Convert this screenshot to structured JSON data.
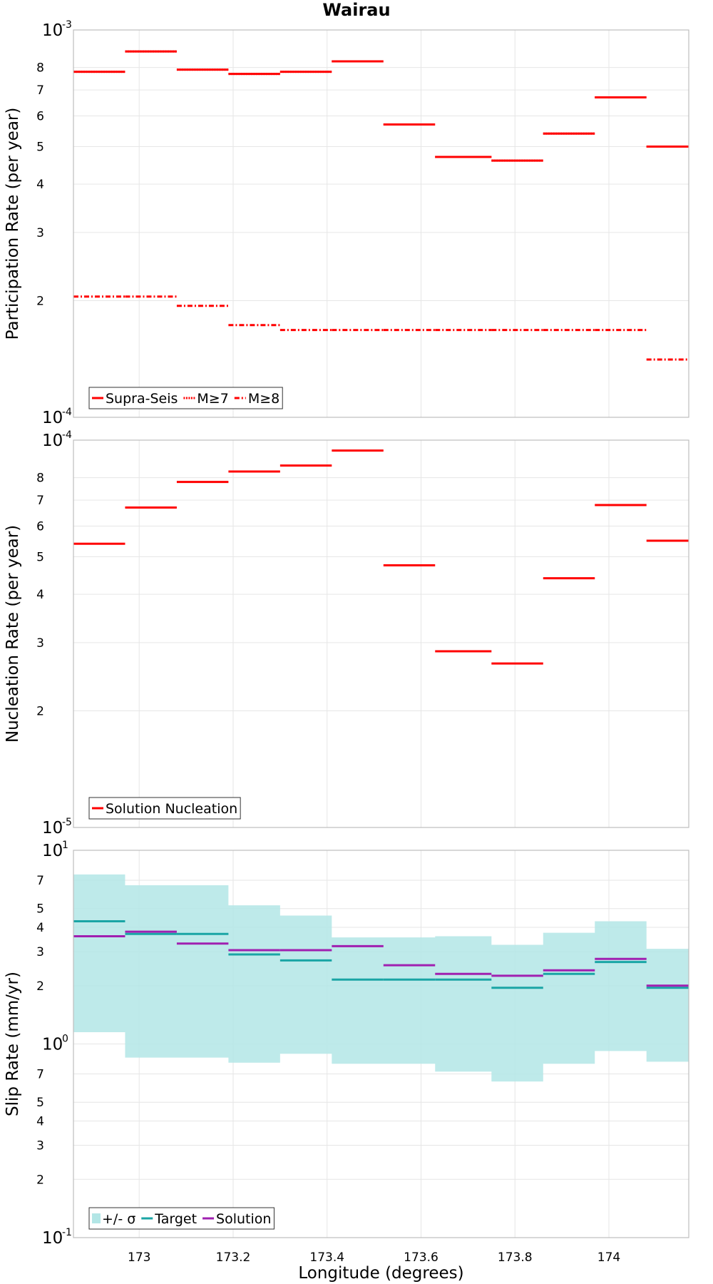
{
  "figure_title": "Wairau",
  "chart_data": [
    {
      "type": "line",
      "step": true,
      "ylabel": "Participation Rate (per year)",
      "yscale": "log",
      "ylim": [
        0.0001,
        0.001
      ],
      "xlim": [
        172.86,
        174.17
      ],
      "y_ticks": [
        {
          "value": 0.001,
          "mant": "10",
          "exp": "-3"
        },
        {
          "value": 0.0008,
          "label": "8"
        },
        {
          "value": 0.0007,
          "label": "7"
        },
        {
          "value": 0.0006,
          "label": "6"
        },
        {
          "value": 0.0005,
          "label": "5"
        },
        {
          "value": 0.0004,
          "label": "4"
        },
        {
          "value": 0.0003,
          "label": "3"
        },
        {
          "value": 0.0002,
          "label": "2"
        },
        {
          "value": 0.0001,
          "mant": "10",
          "exp": "-4"
        }
      ],
      "legend": {
        "position": "bottom-left"
      },
      "series": [
        {
          "name": "Supra-Seis",
          "color": "#ff0000",
          "dash": "solid",
          "bins": [
            [
              172.86,
              172.97
            ],
            [
              172.97,
              173.08
            ],
            [
              173.08,
              173.19
            ],
            [
              173.19,
              173.3
            ],
            [
              173.3,
              173.41
            ],
            [
              173.41,
              173.52
            ],
            [
              173.52,
              173.63
            ],
            [
              173.63,
              173.75
            ],
            [
              173.75,
              173.86
            ],
            [
              173.86,
              173.97
            ],
            [
              173.97,
              174.08
            ],
            [
              174.08,
              174.17
            ]
          ],
          "values": [
            0.00078,
            0.00088,
            0.00079,
            0.00077,
            0.00078,
            0.00083,
            0.00057,
            0.00047,
            0.00046,
            0.00054,
            0.00067,
            0.0005
          ]
        },
        {
          "name": "M≥7",
          "color": "#ff0000",
          "dash": "dotted",
          "bins": [
            [
              172.86,
              172.97
            ],
            [
              172.97,
              173.08
            ],
            [
              173.08,
              173.19
            ],
            [
              173.19,
              173.3
            ],
            [
              173.3,
              173.41
            ],
            [
              173.41,
              173.52
            ],
            [
              173.52,
              173.63
            ],
            [
              173.63,
              173.75
            ],
            [
              173.75,
              173.86
            ],
            [
              173.86,
              173.97
            ],
            [
              173.97,
              174.08
            ],
            [
              174.08,
              174.17
            ]
          ],
          "values": [
            0.00078,
            0.00088,
            0.00079,
            0.00077,
            0.00078,
            0.00083,
            0.00057,
            0.00047,
            0.00046,
            0.00054,
            0.00067,
            0.0005
          ]
        },
        {
          "name": "M≥8",
          "color": "#ff0000",
          "dash": "dashdot",
          "bins": [
            [
              172.86,
              172.97
            ],
            [
              172.97,
              173.08
            ],
            [
              173.08,
              173.19
            ],
            [
              173.19,
              173.3
            ],
            [
              173.3,
              173.41
            ],
            [
              173.41,
              173.52
            ],
            [
              173.52,
              173.63
            ],
            [
              173.63,
              173.75
            ],
            [
              173.75,
              173.86
            ],
            [
              173.86,
              173.97
            ],
            [
              173.97,
              174.08
            ],
            [
              174.08,
              174.17
            ]
          ],
          "values": [
            0.000205,
            0.000205,
            0.000194,
            0.000173,
            0.000168,
            0.000168,
            0.000168,
            0.000168,
            0.000168,
            0.000168,
            0.000168,
            0.000141
          ]
        }
      ]
    },
    {
      "type": "line",
      "step": true,
      "ylabel": "Nucleation Rate (per year)",
      "yscale": "log",
      "ylim": [
        1e-05,
        0.0001
      ],
      "xlim": [
        172.86,
        174.17
      ],
      "y_ticks": [
        {
          "value": 0.0001,
          "mant": "10",
          "exp": "-4"
        },
        {
          "value": 8e-05,
          "label": "8"
        },
        {
          "value": 7e-05,
          "label": "7"
        },
        {
          "value": 6e-05,
          "label": "6"
        },
        {
          "value": 5e-05,
          "label": "5"
        },
        {
          "value": 4e-05,
          "label": "4"
        },
        {
          "value": 3e-05,
          "label": "3"
        },
        {
          "value": 2e-05,
          "label": "2"
        },
        {
          "value": 1e-05,
          "mant": "10",
          "exp": "-5"
        }
      ],
      "legend": {
        "position": "bottom-left"
      },
      "series": [
        {
          "name": "Solution Nucleation",
          "color": "#ff0000",
          "dash": "solid",
          "bins": [
            [
              172.86,
              172.97
            ],
            [
              172.97,
              173.08
            ],
            [
              173.08,
              173.19
            ],
            [
              173.19,
              173.3
            ],
            [
              173.3,
              173.41
            ],
            [
              173.41,
              173.52
            ],
            [
              173.52,
              173.63
            ],
            [
              173.63,
              173.75
            ],
            [
              173.75,
              173.86
            ],
            [
              173.86,
              173.97
            ],
            [
              173.97,
              174.08
            ],
            [
              174.08,
              174.17
            ]
          ],
          "values": [
            5.4e-05,
            6.7e-05,
            7.8e-05,
            8.3e-05,
            8.6e-05,
            9.4e-05,
            4.75e-05,
            2.85e-05,
            2.65e-05,
            4.4e-05,
            6.8e-05,
            5.5e-05
          ]
        }
      ]
    },
    {
      "type": "line",
      "step": true,
      "ylabel": "Slip Rate (mm/yr)",
      "xlabel": "Longitude (degrees)",
      "yscale": "log",
      "ylim": [
        0.1,
        10
      ],
      "xlim": [
        172.86,
        174.17
      ],
      "x_ticks": [
        173,
        173.2,
        173.4,
        173.6,
        173.8,
        174
      ],
      "y_ticks": [
        {
          "value": 10,
          "mant": "10",
          "exp": "1"
        },
        {
          "value": 7,
          "label": "7"
        },
        {
          "value": 5,
          "label": "5"
        },
        {
          "value": 4,
          "label": "4"
        },
        {
          "value": 3,
          "label": "3"
        },
        {
          "value": 2,
          "label": "2"
        },
        {
          "value": 1,
          "mant": "10",
          "exp": "0"
        },
        {
          "value": 0.7,
          "label": "7"
        },
        {
          "value": 0.5,
          "label": "5"
        },
        {
          "value": 0.4,
          "label": "4"
        },
        {
          "value": 0.3,
          "label": "3"
        },
        {
          "value": 0.2,
          "label": "2"
        },
        {
          "value": 0.1,
          "mant": "10",
          "exp": "-1"
        }
      ],
      "legend": {
        "position": "bottom-left"
      },
      "series": [
        {
          "name": "+/- σ",
          "color": "#b3e6e6",
          "kind": "band",
          "bins": [
            [
              172.86,
              172.97
            ],
            [
              172.97,
              173.08
            ],
            [
              173.08,
              173.19
            ],
            [
              173.19,
              173.3
            ],
            [
              173.3,
              173.41
            ],
            [
              173.41,
              173.52
            ],
            [
              173.52,
              173.63
            ],
            [
              173.63,
              173.75
            ],
            [
              173.75,
              173.86
            ],
            [
              173.86,
              173.97
            ],
            [
              173.97,
              174.08
            ],
            [
              174.08,
              174.17
            ]
          ],
          "lower": [
            1.15,
            0.85,
            0.85,
            0.8,
            0.89,
            0.79,
            0.79,
            0.72,
            0.64,
            0.79,
            0.92,
            0.81
          ],
          "upper": [
            7.5,
            6.6,
            6.6,
            5.2,
            4.6,
            3.55,
            3.55,
            3.6,
            3.25,
            3.75,
            4.3,
            3.1
          ]
        },
        {
          "name": "Target",
          "color": "#1aa5a5",
          "dash": "solid",
          "bins": [
            [
              172.86,
              172.97
            ],
            [
              172.97,
              173.08
            ],
            [
              173.08,
              173.19
            ],
            [
              173.19,
              173.3
            ],
            [
              173.3,
              173.41
            ],
            [
              173.41,
              173.52
            ],
            [
              173.52,
              173.63
            ],
            [
              173.63,
              173.75
            ],
            [
              173.75,
              173.86
            ],
            [
              173.86,
              173.97
            ],
            [
              173.97,
              174.08
            ],
            [
              174.08,
              174.17
            ]
          ],
          "values": [
            4.3,
            3.7,
            3.7,
            2.9,
            2.7,
            2.15,
            2.15,
            2.15,
            1.95,
            2.3,
            2.65,
            1.95
          ]
        },
        {
          "name": "Solution",
          "color": "#a020b0",
          "dash": "solid",
          "bins": [
            [
              172.86,
              172.97
            ],
            [
              172.97,
              173.08
            ],
            [
              173.08,
              173.19
            ],
            [
              173.19,
              173.3
            ],
            [
              173.3,
              173.41
            ],
            [
              173.41,
              173.52
            ],
            [
              173.52,
              173.63
            ],
            [
              173.63,
              173.75
            ],
            [
              173.75,
              173.86
            ],
            [
              173.86,
              173.97
            ],
            [
              173.97,
              174.08
            ],
            [
              174.08,
              174.17
            ]
          ],
          "values": [
            3.6,
            3.8,
            3.3,
            3.05,
            3.05,
            3.2,
            2.55,
            2.3,
            2.25,
            2.4,
            2.75,
            2.0
          ]
        }
      ]
    }
  ]
}
